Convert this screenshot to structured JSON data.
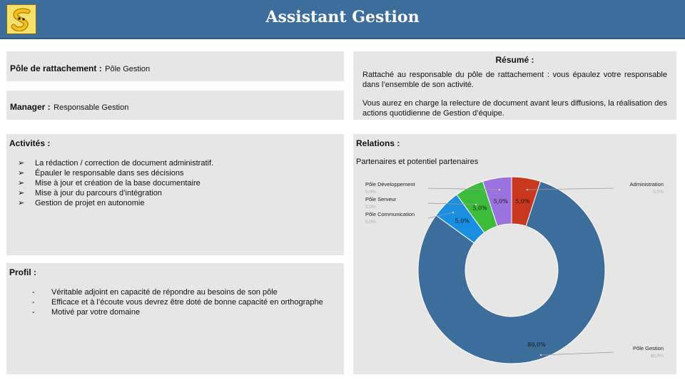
{
  "header": {
    "title": "Assistant Gestion",
    "logo_icon": "snake-s-logo"
  },
  "pole": {
    "label": "Pôle de rattachement :",
    "value": "Pôle Gestion"
  },
  "manager": {
    "label": "Manager :",
    "value": "Responsable Gestion"
  },
  "resume": {
    "title": "Résumé :",
    "p1": "Rattaché au responsable du pôle de rattachement : vous épaulez votre responsable dans l’ensemble de son activité.",
    "p2": "Vous aurez en charge la relecture de document avant leurs diffusions, la réalisation des actions quotidienne de Gestion d’équipe."
  },
  "activites": {
    "title": "Activités :",
    "bullet": "➢",
    "items": [
      "La rédaction / correction de document administratif.",
      "Épauler le responsable dans ses décisions",
      "Mise à jour et création de la base documentaire",
      "Mise à jour du parcours d’intégration",
      "Gestion de projet en autonomie"
    ]
  },
  "profil": {
    "title": "Profil :",
    "bullet": "-",
    "items": [
      "Véritable adjoint en capacité de répondre au besoins de son pôle",
      "Efficace et à l’écoute vous devrez être doté de bonne capacité en orthographe",
      "Motivé par votre domaine"
    ]
  },
  "relations": {
    "title": "Relations :",
    "subtitle": "Partenaires et potentiel partenaires"
  },
  "chart_data": {
    "type": "pie",
    "donut": true,
    "categories": [
      "Administration",
      "Pôle Gestion",
      "Pôle Communication",
      "Pôle Serveur",
      "Pôle Développement"
    ],
    "values": [
      5.0,
      80.0,
      5.0,
      5.0,
      5.0
    ],
    "slice_labels": [
      "5,0%",
      "80,0%",
      "5,0%",
      "5,0%",
      "5,0%"
    ],
    "callout_values": [
      "5,0%",
      "80,0%",
      "5,0%",
      "5,0%",
      "5,0%"
    ],
    "colors": [
      "#c9371f",
      "#3d6d9b",
      "#1a8ee0",
      "#3dbb3a",
      "#9a73e0"
    ]
  }
}
